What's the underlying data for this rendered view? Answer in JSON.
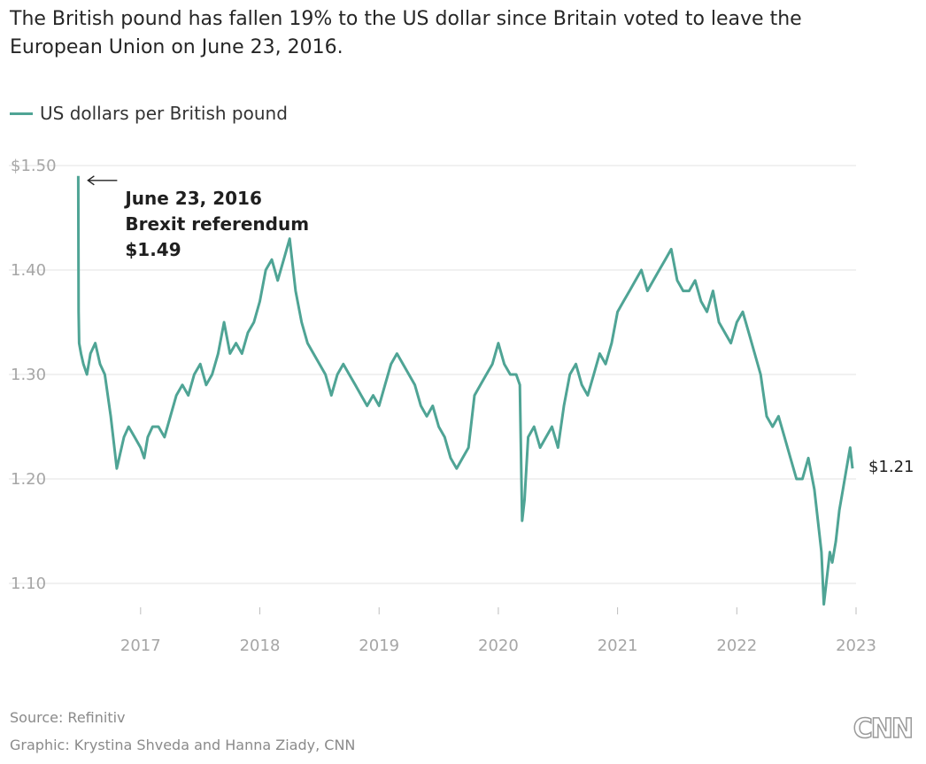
{
  "header": {
    "title": "The British pound has fallen 19% to the US dollar since Britain voted to leave the European Union on June 23, 2016."
  },
  "footer": {
    "source": "Source: Refinitiv",
    "credit": "Graphic: Krystina Shveda and Hanna Ziady, CNN",
    "logo_text": "CNN"
  },
  "colors": {
    "line": "#4fa495",
    "grid": "#e3e3e3",
    "tick_text": "#a6a6a6",
    "annotation_text": "#1f1f1f"
  },
  "chart_data": {
    "type": "line",
    "title": "The British pound has fallen 19% to the US dollar since Britain voted to leave the European Union on June 23, 2016.",
    "xlabel": "",
    "ylabel": "",
    "xlim": [
      2016.4,
      2023.0
    ],
    "ylim": [
      1.05,
      1.5
    ],
    "y_ticks": [
      1.1,
      1.2,
      1.3,
      1.4,
      1.5
    ],
    "y_tick_labels": [
      "1.10",
      "1.20",
      "1.30",
      "1.40",
      "$1.50"
    ],
    "x_ticks": [
      2017,
      2018,
      2019,
      2020,
      2021,
      2022,
      2023
    ],
    "x_tick_labels": [
      "2017",
      "2018",
      "2019",
      "2020",
      "2021",
      "2022",
      "2023"
    ],
    "grid": true,
    "legend": {
      "placement": "top-left",
      "entries": [
        "US dollars per British pound"
      ]
    },
    "series": [
      {
        "name": "US dollars per British pound",
        "x": [
          2016.477,
          2016.48,
          2016.485,
          2016.5,
          2016.52,
          2016.55,
          2016.58,
          2016.62,
          2016.66,
          2016.7,
          2016.75,
          2016.78,
          2016.8,
          2016.82,
          2016.86,
          2016.9,
          2016.95,
          2017.0,
          2017.03,
          2017.06,
          2017.1,
          2017.15,
          2017.2,
          2017.25,
          2017.3,
          2017.35,
          2017.4,
          2017.45,
          2017.5,
          2017.55,
          2017.6,
          2017.65,
          2017.7,
          2017.75,
          2017.8,
          2017.85,
          2017.9,
          2017.95,
          2018.0,
          2018.05,
          2018.1,
          2018.15,
          2018.2,
          2018.25,
          2018.3,
          2018.35,
          2018.4,
          2018.45,
          2018.5,
          2018.55,
          2018.6,
          2018.65,
          2018.7,
          2018.75,
          2018.8,
          2018.85,
          2018.9,
          2018.95,
          2019.0,
          2019.05,
          2019.1,
          2019.15,
          2019.2,
          2019.25,
          2019.3,
          2019.35,
          2019.4,
          2019.45,
          2019.5,
          2019.55,
          2019.6,
          2019.65,
          2019.7,
          2019.75,
          2019.8,
          2019.85,
          2019.9,
          2019.95,
          2020.0,
          2020.05,
          2020.1,
          2020.15,
          2020.18,
          2020.2,
          2020.22,
          2020.25,
          2020.3,
          2020.35,
          2020.4,
          2020.45,
          2020.5,
          2020.55,
          2020.6,
          2020.65,
          2020.7,
          2020.75,
          2020.8,
          2020.85,
          2020.9,
          2020.95,
          2021.0,
          2021.05,
          2021.1,
          2021.15,
          2021.2,
          2021.25,
          2021.3,
          2021.35,
          2021.4,
          2021.45,
          2021.5,
          2021.55,
          2021.6,
          2021.65,
          2021.7,
          2021.75,
          2021.8,
          2021.85,
          2021.9,
          2021.95,
          2022.0,
          2022.05,
          2022.1,
          2022.15,
          2022.2,
          2022.25,
          2022.3,
          2022.35,
          2022.4,
          2022.45,
          2022.5,
          2022.55,
          2022.6,
          2022.65,
          2022.68,
          2022.71,
          2022.73,
          2022.75,
          2022.78,
          2022.8,
          2022.83,
          2022.86,
          2022.89,
          2022.92,
          2022.95,
          2022.97
        ],
        "y": [
          1.49,
          1.36,
          1.33,
          1.32,
          1.31,
          1.3,
          1.32,
          1.33,
          1.31,
          1.3,
          1.26,
          1.23,
          1.21,
          1.22,
          1.24,
          1.25,
          1.24,
          1.23,
          1.22,
          1.24,
          1.25,
          1.25,
          1.24,
          1.26,
          1.28,
          1.29,
          1.28,
          1.3,
          1.31,
          1.29,
          1.3,
          1.32,
          1.35,
          1.32,
          1.33,
          1.32,
          1.34,
          1.35,
          1.37,
          1.4,
          1.41,
          1.39,
          1.41,
          1.43,
          1.38,
          1.35,
          1.33,
          1.32,
          1.31,
          1.3,
          1.28,
          1.3,
          1.31,
          1.3,
          1.29,
          1.28,
          1.27,
          1.28,
          1.27,
          1.29,
          1.31,
          1.32,
          1.31,
          1.3,
          1.29,
          1.27,
          1.26,
          1.27,
          1.25,
          1.24,
          1.22,
          1.21,
          1.22,
          1.23,
          1.28,
          1.29,
          1.3,
          1.31,
          1.33,
          1.31,
          1.3,
          1.3,
          1.29,
          1.16,
          1.18,
          1.24,
          1.25,
          1.23,
          1.24,
          1.25,
          1.23,
          1.27,
          1.3,
          1.31,
          1.29,
          1.28,
          1.3,
          1.32,
          1.31,
          1.33,
          1.36,
          1.37,
          1.38,
          1.39,
          1.4,
          1.38,
          1.39,
          1.4,
          1.41,
          1.42,
          1.39,
          1.38,
          1.38,
          1.39,
          1.37,
          1.36,
          1.38,
          1.35,
          1.34,
          1.33,
          1.35,
          1.36,
          1.34,
          1.32,
          1.3,
          1.26,
          1.25,
          1.26,
          1.24,
          1.22,
          1.2,
          1.2,
          1.22,
          1.19,
          1.16,
          1.13,
          1.08,
          1.1,
          1.13,
          1.12,
          1.14,
          1.17,
          1.19,
          1.21,
          1.23,
          1.21
        ]
      }
    ],
    "annotations": [
      {
        "lines": [
          "June 23, 2016",
          "Brexit referendum",
          "$1.49"
        ],
        "x": 2016.477,
        "y": 1.49
      },
      {
        "lines": [
          "$1.21"
        ],
        "x": 2022.97,
        "y": 1.21
      }
    ]
  }
}
